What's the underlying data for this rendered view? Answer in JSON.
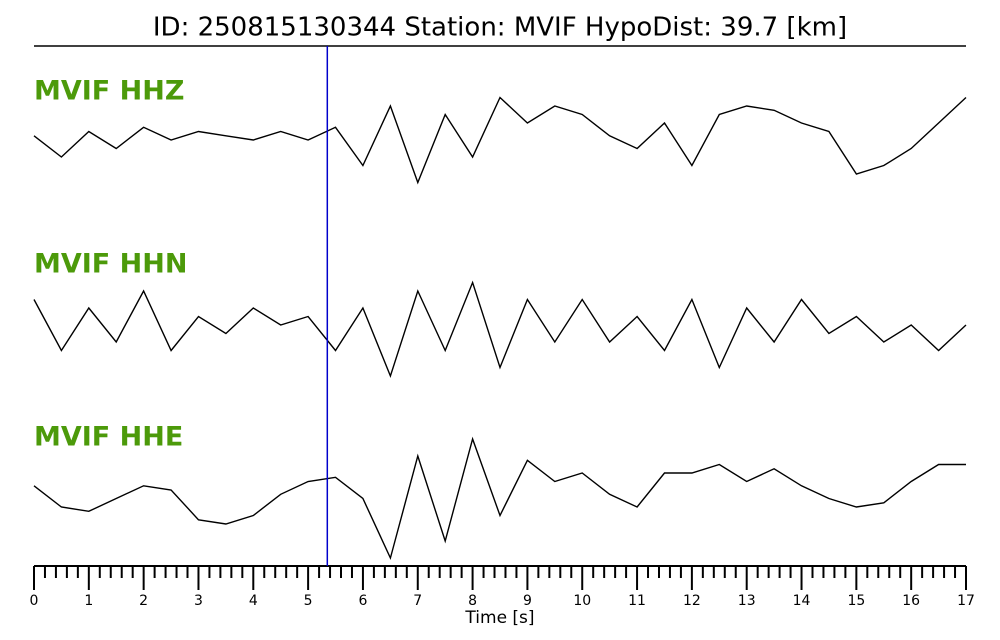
{
  "chart_data": {
    "type": "seismogram",
    "title": "ID: 250815130344   Station: MVIF   HypoDist:    39.7 [km]",
    "x_label": "Time [s]",
    "xlim": [
      0,
      17
    ],
    "xticks": [
      0,
      1,
      2,
      3,
      4,
      5,
      6,
      7,
      8,
      9,
      10,
      11,
      12,
      13,
      14,
      15,
      16,
      17
    ],
    "xminor": 0.2,
    "ylim": [
      -1,
      1
    ],
    "pick": 5.35,
    "pick_color": "#0000cc",
    "label_color": "#4c9a0a",
    "x": [
      0,
      0.5,
      1,
      1.5,
      2,
      2.5,
      3,
      3.5,
      4,
      4.5,
      5,
      5.5,
      6,
      6.5,
      7,
      7.5,
      8,
      8.5,
      9,
      9.5,
      10,
      10.5,
      11,
      11.5,
      12,
      12.5,
      13,
      13.5,
      14,
      14.5,
      15,
      15.5,
      16,
      16.5,
      17
    ],
    "series": [
      {
        "name": "MVIF HHZ",
        "color": "#000000",
        "values": [
          0.05,
          -0.2,
          0.1,
          -0.1,
          0.15,
          0,
          0.1,
          0.05,
          0,
          0.1,
          0,
          0.15,
          -0.3,
          0.4,
          -0.5,
          0.3,
          -0.2,
          0.5,
          0.2,
          0.4,
          0.3,
          0.05,
          -0.1,
          0.2,
          -0.3,
          0.3,
          0.4,
          0.35,
          0.2,
          0.1,
          -0.4,
          -0.3,
          -0.1,
          0.2,
          0.5
        ]
      },
      {
        "name": "MVIF HHN",
        "color": "#000000",
        "values": [
          0.3,
          -0.3,
          0.2,
          -0.2,
          0.4,
          -0.3,
          0.1,
          -0.1,
          0.2,
          0,
          0.1,
          -0.3,
          0.2,
          -0.6,
          0.4,
          -0.3,
          0.5,
          -0.5,
          0.3,
          -0.2,
          0.3,
          -0.2,
          0.1,
          -0.3,
          0.3,
          -0.5,
          0.2,
          -0.2,
          0.3,
          -0.1,
          0.1,
          -0.2,
          0,
          -0.3,
          0
        ]
      },
      {
        "name": "MVIF HHE",
        "color": "#000000",
        "values": [
          0.05,
          -0.2,
          -0.25,
          -0.1,
          0.05,
          0,
          -0.35,
          -0.4,
          -0.3,
          -0.05,
          0.1,
          0.15,
          -0.1,
          -0.8,
          0.4,
          -0.6,
          0.6,
          -0.3,
          0.35,
          0.1,
          0.2,
          -0.05,
          -0.2,
          0.2,
          0.2,
          0.3,
          0.1,
          0.25,
          0.05,
          -0.1,
          -0.2,
          -0.15,
          0.1,
          0.3,
          0.3
        ]
      }
    ]
  }
}
